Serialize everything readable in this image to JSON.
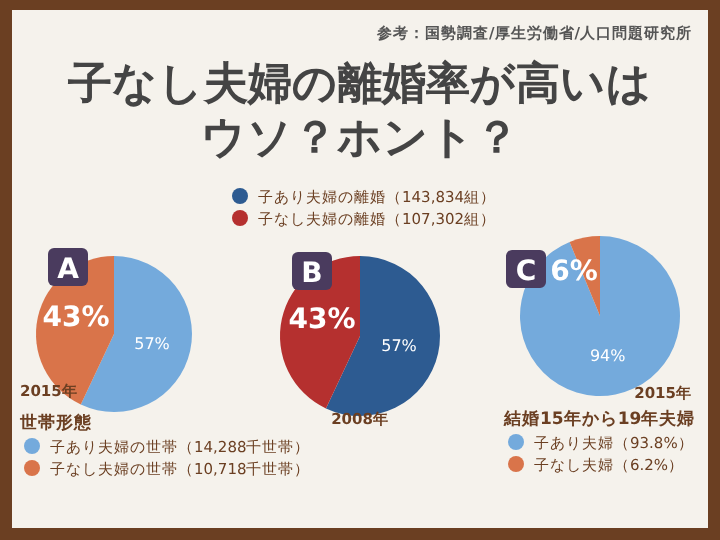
{
  "chart_data": [
    {
      "type": "pie",
      "title": "A",
      "annotations": [
        "参考：国勢調査/厚生労働省/人口問題研究所",
        "子なし夫婦の離婚率が高いは",
        "ウソ？ホント？",
        "2015年"
      ],
      "legend_title": "世帯形態",
      "legend": "bottom",
      "categories": [
        "子あり夫婦の世帯（14,288千世帯）",
        "子なし夫婦の世帯（10,718千世帯）"
      ],
      "values": [
        57,
        43
      ],
      "value_labels": [
        "57%",
        "43%"
      ],
      "colors": [
        "#74aadc",
        "#d9744a"
      ]
    },
    {
      "type": "pie",
      "title": "B",
      "annotations": [
        "2008年"
      ],
      "legend": "top",
      "categories": [
        "子あり夫婦の離婚（143,834組）",
        "子なし夫婦の離婚（107,302組）"
      ],
      "values": [
        57,
        43
      ],
      "value_labels": [
        "57%",
        "43%"
      ],
      "colors": [
        "#2d5b91",
        "#b5302f"
      ]
    },
    {
      "type": "pie",
      "title": "C",
      "annotations": [
        "2015年"
      ],
      "legend_title": "結婚15年から19年夫婦",
      "legend": "bottom",
      "categories": [
        "子あり夫婦（93.8%）",
        "子なし夫婦（6.2%）"
      ],
      "values": [
        93.8,
        6.2
      ],
      "value_labels": [
        "94%",
        "6%"
      ],
      "colors": [
        "#74aadc",
        "#d9744a"
      ]
    }
  ]
}
